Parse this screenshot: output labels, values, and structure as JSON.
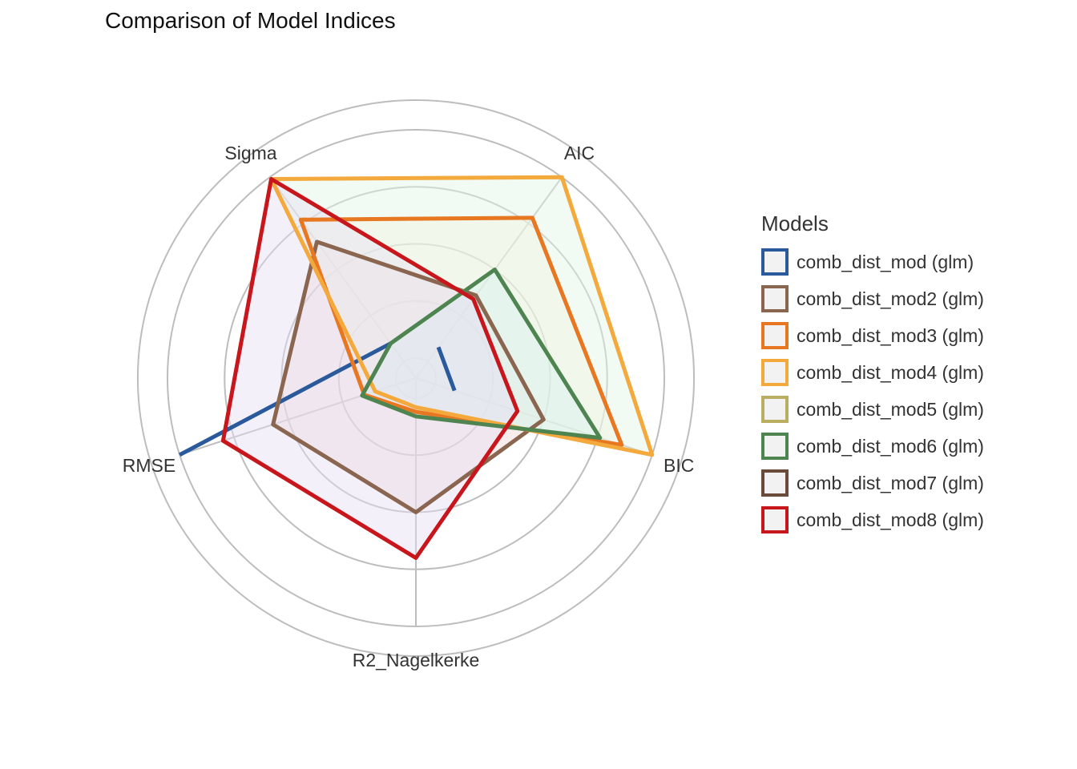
{
  "chart_data": {
    "type": "radar",
    "title": "Comparison of Model Indices",
    "axes": [
      "AIC",
      "BIC",
      "R2_Nagelkerke",
      "RMSE",
      "Sigma"
    ],
    "rlim": [
      0,
      1
    ],
    "grid": true,
    "legend_title": "Models",
    "legend_position": "right",
    "series": [
      {
        "name": "comb_dist_mod (glm)",
        "color": "#2a5a9b",
        "values": [
          0.08,
          0.09,
          0.0,
          1.0,
          0.1
        ],
        "fill": false
      },
      {
        "name": "comb_dist_mod2 (glm)",
        "color": "#8a6650",
        "values": [
          0.36,
          0.5,
          0.5,
          0.57,
          0.65
        ],
        "fill": true,
        "fill_color": "#f0d8d8"
      },
      {
        "name": "comb_dist_mod3 (glm)",
        "color": "#e87722",
        "values": [
          0.78,
          0.86,
          0.06,
          0.15,
          0.77
        ],
        "fill": true,
        "fill_color": "#fff2d9"
      },
      {
        "name": "comb_dist_mod4 (glm)",
        "color": "#f4a93d",
        "values": [
          1.0,
          1.0,
          0.04,
          0.1,
          0.99
        ],
        "fill": true,
        "fill_color": "#e2f5e6"
      },
      {
        "name": "comb_dist_mod5 (glm)",
        "color": "#b9ae62",
        "values": [
          0,
          0,
          0,
          0,
          0
        ],
        "fill": false
      },
      {
        "name": "comb_dist_mod6 (glm)",
        "color": "#4e8450",
        "values": [
          0.5,
          0.76,
          0.08,
          0.16,
          0.1
        ],
        "fill": true,
        "fill_color": "#d4f0ef"
      },
      {
        "name": "comb_dist_mod7 (glm)",
        "color": "#6a4a3a",
        "values": [
          0,
          0,
          0,
          0,
          0
        ],
        "fill": false
      },
      {
        "name": "comb_dist_mod8 (glm)",
        "color": "#c8161d",
        "values": [
          0.34,
          0.38,
          0.7,
          0.8,
          0.99
        ],
        "fill": true,
        "fill_color": "#e6def5"
      }
    ]
  }
}
